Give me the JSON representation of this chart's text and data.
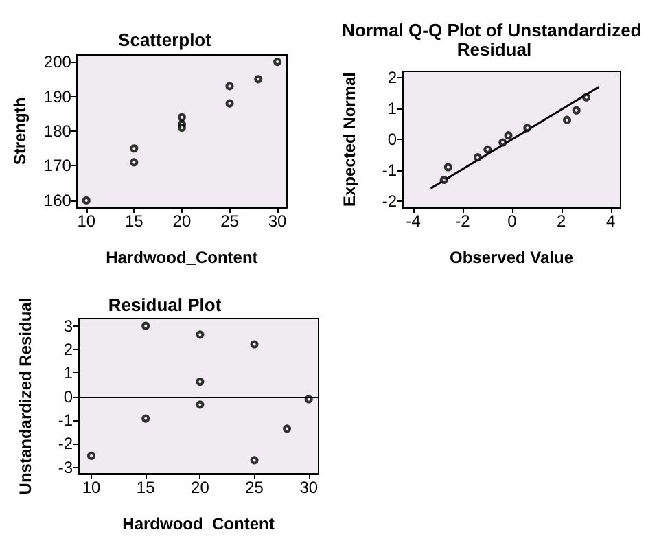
{
  "chart_data": [
    {
      "type": "scatter",
      "title": "Scatterplot",
      "xlabel": "Hardwood_Content",
      "ylabel": "Strength",
      "marker": "circle",
      "x": [
        10,
        15,
        15,
        20,
        20,
        20,
        25,
        25,
        28,
        30
      ],
      "series": [
        {
          "color": "#000000",
          "values": [
            160,
            175,
            171,
            184,
            182,
            181,
            193,
            188,
            195,
            200
          ]
        }
      ],
      "xlim": [
        9,
        31
      ],
      "xticks": [
        10,
        15,
        20,
        25,
        30
      ],
      "ylim": [
        158,
        202
      ],
      "yticks": [
        160,
        170,
        180,
        190,
        200
      ]
    },
    {
      "type": "scatter",
      "title": "Normal Q-Q Plot of Unstandardized Residual",
      "xlabel": "Observed Value",
      "ylabel": "Expected Normal",
      "marker": "circle",
      "series": [
        {
          "color": "#000000",
          "x": [
            -2.76,
            -2.59,
            -1.39,
            -0.99,
            -0.38,
            -0.15,
            0.62,
            2.23,
            2.61,
            3.01
          ],
          "values": [
            -1.31,
            -0.9,
            -0.58,
            -0.33,
            -0.1,
            0.13,
            0.37,
            0.63,
            0.94,
            1.36
          ]
        },
        {
          "type": "line",
          "marker": "none",
          "color": "#000000",
          "x": [
            -3.26,
            3.5
          ],
          "values": [
            -1.57,
            1.69
          ]
        }
      ],
      "xlim": [
        -4.45,
        4.4
      ],
      "xticks": [
        -4,
        -2,
        0,
        2,
        4
      ],
      "ylim": [
        -2.2,
        2.2
      ],
      "yticks": [
        -2,
        -1,
        0,
        1,
        2
      ]
    },
    {
      "type": "scatter",
      "title": "Residual Plot",
      "xlabel": "Hardwood_Content",
      "ylabel": "Unstandardized Residual",
      "marker": "circle",
      "x": [
        10,
        15,
        15,
        20,
        20,
        20,
        25,
        25,
        28,
        30
      ],
      "series": [
        {
          "color": "#000000",
          "values": [
            -2.51,
            3.0,
            -0.93,
            2.63,
            0.63,
            -0.34,
            2.22,
            -2.7,
            -1.36,
            -0.11
          ]
        }
      ],
      "ref_lines": [
        {
          "axis": "y",
          "value": 0,
          "color": "#000000"
        }
      ],
      "xlim": [
        8.8,
        30.9
      ],
      "xticks": [
        10,
        15,
        20,
        25,
        30
      ],
      "ylim": [
        -3.27,
        3.31
      ],
      "yticks": [
        -3,
        -2,
        -1,
        0,
        1,
        2,
        3
      ]
    }
  ]
}
